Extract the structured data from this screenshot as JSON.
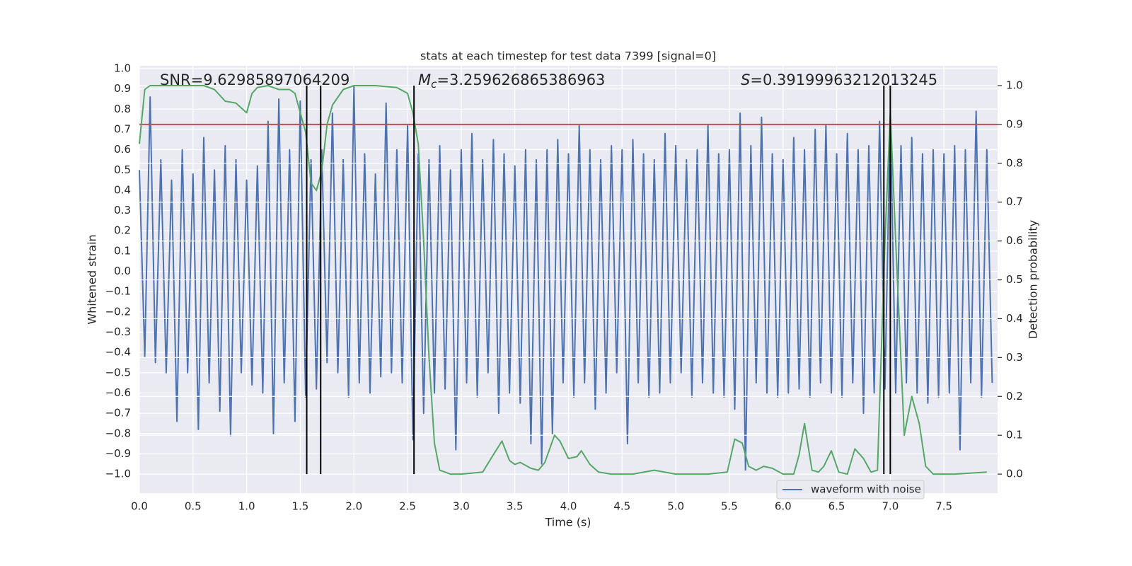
{
  "chart_data": {
    "type": "line",
    "title": "stats at each timestep for test data 7399 [signal=0]",
    "xlabel": "Time (s)",
    "ylabel": "Whitened strain",
    "y2label": "Detection probability",
    "xlim": [
      0,
      8.0
    ],
    "ylim": [
      -1.094,
      1.014
    ],
    "y2lim": [
      -0.049,
      1.051
    ],
    "grid": true,
    "legend": "lower right",
    "xticks": [
      {
        "value": 0,
        "label": "0.0"
      },
      {
        "value": 0.5,
        "label": "0.5"
      },
      {
        "value": 1,
        "label": "1.0"
      },
      {
        "value": 1.5,
        "label": "1.5"
      },
      {
        "value": 2,
        "label": "2.0"
      },
      {
        "value": 2.5,
        "label": "2.5"
      },
      {
        "value": 3,
        "label": "3.0"
      },
      {
        "value": 3.5,
        "label": "3.5"
      },
      {
        "value": 4,
        "label": "4.0"
      },
      {
        "value": 4.5,
        "label": "4.5"
      },
      {
        "value": 5,
        "label": "5.0"
      },
      {
        "value": 5.5,
        "label": "5.5"
      },
      {
        "value": 6,
        "label": "6.0"
      },
      {
        "value": 6.5,
        "label": "6.5"
      },
      {
        "value": 7,
        "label": "7.0"
      },
      {
        "value": 7.5,
        "label": "7.5"
      }
    ],
    "yticks": [
      {
        "value": 1,
        "label": "1.0"
      },
      {
        "value": 0.9,
        "label": "0.9"
      },
      {
        "value": 0.8,
        "label": "0.8"
      },
      {
        "value": 0.7,
        "label": "0.7"
      },
      {
        "value": 0.6,
        "label": "0.6"
      },
      {
        "value": 0.5,
        "label": "0.5"
      },
      {
        "value": 0.4,
        "label": "0.4"
      },
      {
        "value": 0.3,
        "label": "0.3"
      },
      {
        "value": 0.2,
        "label": "0.2"
      },
      {
        "value": 0.1,
        "label": "0.1"
      },
      {
        "value": 0,
        "label": "0.0"
      },
      {
        "value": -0.1,
        "label": "−0.1"
      },
      {
        "value": -0.2,
        "label": "−0.2"
      },
      {
        "value": -0.3,
        "label": "−0.3"
      },
      {
        "value": -0.4,
        "label": "−0.4"
      },
      {
        "value": -0.5,
        "label": "−0.5"
      },
      {
        "value": -0.6,
        "label": "−0.6"
      },
      {
        "value": -0.7,
        "label": "−0.7"
      },
      {
        "value": -0.8,
        "label": "−0.8"
      },
      {
        "value": -0.9,
        "label": "−0.9"
      },
      {
        "value": -1,
        "label": "−1.0"
      }
    ],
    "y2ticks": [
      {
        "value": 0,
        "label": "0.0"
      },
      {
        "value": 0.1,
        "label": "0.1"
      },
      {
        "value": 0.2,
        "label": "0.2"
      },
      {
        "value": 0.3,
        "label": "0.3"
      },
      {
        "value": 0.4,
        "label": "0.4"
      },
      {
        "value": 0.5,
        "label": "0.5"
      },
      {
        "value": 0.6,
        "label": "0.6"
      },
      {
        "value": 0.7,
        "label": "0.7"
      },
      {
        "value": 0.8,
        "label": "0.8"
      },
      {
        "value": 0.9,
        "label": "0.9"
      },
      {
        "value": 1,
        "label": "1.0"
      }
    ],
    "series": [
      {
        "name": "waveform with noise",
        "color": "#4c72b0",
        "x": [
          0,
          0.05,
          0.1,
          0.15,
          0.2,
          0.25,
          0.3,
          0.35,
          0.4,
          0.45,
          0.5,
          0.55,
          0.6,
          0.65,
          0.7,
          0.75,
          0.8,
          0.85,
          0.9,
          0.95,
          1,
          1.05,
          1.1,
          1.15,
          1.2,
          1.25,
          1.3,
          1.35,
          1.4,
          1.45,
          1.5,
          1.55,
          1.6,
          1.65,
          1.7,
          1.75,
          1.8,
          1.85,
          1.9,
          1.95,
          2,
          2.05,
          2.1,
          2.15,
          2.2,
          2.25,
          2.3,
          2.35,
          2.4,
          2.45,
          2.5,
          2.55,
          2.6,
          2.65,
          2.7,
          2.75,
          2.8,
          2.85,
          2.9,
          2.95,
          3,
          3.05,
          3.1,
          3.15,
          3.2,
          3.25,
          3.3,
          3.35,
          3.4,
          3.45,
          3.5,
          3.55,
          3.6,
          3.65,
          3.7,
          3.75,
          3.8,
          3.85,
          3.9,
          3.95,
          4,
          4.05,
          4.1,
          4.15,
          4.2,
          4.25,
          4.3,
          4.35,
          4.4,
          4.45,
          4.5,
          4.55,
          4.6,
          4.65,
          4.7,
          4.75,
          4.8,
          4.85,
          4.9,
          4.95,
          5,
          5.05,
          5.1,
          5.15,
          5.2,
          5.25,
          5.3,
          5.35,
          5.4,
          5.45,
          5.5,
          5.55,
          5.6,
          5.65,
          5.7,
          5.75,
          5.8,
          5.85,
          5.9,
          5.95,
          6,
          6.05,
          6.1,
          6.15,
          6.2,
          6.25,
          6.3,
          6.35,
          6.4,
          6.45,
          6.5,
          6.55,
          6.6,
          6.65,
          6.7,
          6.75,
          6.8,
          6.85,
          6.9,
          6.95,
          7,
          7.05,
          7.1,
          7.15,
          7.2,
          7.25,
          7.3,
          7.35,
          7.4,
          7.45,
          7.5,
          7.55,
          7.6,
          7.65,
          7.7,
          7.75,
          7.8,
          7.85,
          7.9,
          7.95
        ],
        "values": [
          0.5,
          -0.42,
          0.86,
          -0.45,
          0.55,
          -0.5,
          0.45,
          -0.74,
          0.6,
          -0.5,
          0.48,
          -0.78,
          0.66,
          -0.55,
          0.5,
          -0.69,
          0.62,
          -0.81,
          0.55,
          -0.5,
          0.45,
          -0.56,
          0.52,
          -0.6,
          0.74,
          -0.8,
          0.85,
          -0.55,
          0.6,
          -0.74,
          0.84,
          -0.62,
          0.55,
          -0.58,
          0.6,
          -0.45,
          0.78,
          -0.5,
          0.55,
          -0.62,
          0.91,
          -0.55,
          0.58,
          -0.6,
          0.48,
          -0.52,
          0.83,
          -0.5,
          0.6,
          -0.55,
          0.72,
          -0.83,
          0.58,
          -0.7,
          0.55,
          -0.6,
          0.62,
          -0.58,
          0.5,
          -0.88,
          0.6,
          -0.55,
          0.68,
          -0.62,
          0.55,
          -0.5,
          0.65,
          -0.7,
          0.58,
          -0.6,
          0.52,
          -0.65,
          0.6,
          -0.85,
          0.55,
          -0.95,
          0.6,
          -0.8,
          0.65,
          -0.55,
          0.58,
          -0.62,
          0.72,
          -0.55,
          0.6,
          -0.68,
          0.55,
          -0.6,
          0.62,
          -0.5,
          0.6,
          -0.85,
          0.65,
          -0.55,
          0.58,
          -0.62,
          0.55,
          -0.6,
          0.68,
          -0.55,
          0.62,
          -0.5,
          0.55,
          -0.62,
          0.6,
          -0.55,
          0.72,
          -0.6,
          0.58,
          -0.62,
          0.6,
          -0.68,
          0.78,
          -0.98,
          0.62,
          -0.55,
          0.76,
          -0.6,
          0.58,
          -0.62,
          0.55,
          -0.6,
          0.66,
          -0.58,
          0.6,
          -0.62,
          0.7,
          -0.55,
          0.72,
          -0.6,
          0.58,
          -0.62,
          0.68,
          -0.55,
          0.6,
          -0.7,
          0.62,
          -0.6,
          0.74,
          -0.58,
          0.77,
          -0.6,
          0.62,
          -0.55,
          0.66,
          -0.6,
          0.58,
          -0.65,
          0.6,
          -0.62,
          0.58,
          -0.6,
          0.62,
          -0.88,
          0.6,
          -0.55,
          0.79,
          -0.62,
          0.6,
          -0.55
        ]
      },
      {
        "axis": "y2",
        "color": "#55a868",
        "x": [
          0,
          0.05,
          0.1,
          0.3,
          0.6,
          0.7,
          0.8,
          0.9,
          1.0,
          1.05,
          1.1,
          1.2,
          1.3,
          1.4,
          1.45,
          1.55,
          1.6,
          1.65,
          1.7,
          1.75,
          1.8,
          1.9,
          2.0,
          2.2,
          2.4,
          2.5,
          2.55,
          2.6,
          2.65,
          2.7,
          2.75,
          2.8,
          2.9,
          3.0,
          3.2,
          3.3,
          3.38,
          3.45,
          3.5,
          3.55,
          3.65,
          3.72,
          3.78,
          3.87,
          3.92,
          4.0,
          4.08,
          4.12,
          4.2,
          4.28,
          4.4,
          4.6,
          4.8,
          5.0,
          5.3,
          5.48,
          5.55,
          5.62,
          5.68,
          5.75,
          5.82,
          5.9,
          6.0,
          6.1,
          6.15,
          6.2,
          6.27,
          6.33,
          6.38,
          6.45,
          6.52,
          6.6,
          6.67,
          6.75,
          6.82,
          6.88,
          6.95,
          7.0,
          7.05,
          7.13,
          7.2,
          7.27,
          7.33,
          7.4,
          7.6,
          7.9
        ],
        "values": [
          0.85,
          0.99,
          1.0,
          1.0,
          1.0,
          0.99,
          0.96,
          0.955,
          0.93,
          0.98,
          0.995,
          1.0,
          0.99,
          0.99,
          0.98,
          0.88,
          0.75,
          0.73,
          0.78,
          0.9,
          0.95,
          0.99,
          1.0,
          1.0,
          0.995,
          0.98,
          0.93,
          0.85,
          0.6,
          0.3,
          0.08,
          0.01,
          0.0,
          0.0,
          0.005,
          0.05,
          0.085,
          0.035,
          0.025,
          0.03,
          0.015,
          0.01,
          0.03,
          0.1,
          0.085,
          0.04,
          0.045,
          0.06,
          0.025,
          0.005,
          0.0,
          0.0,
          0.01,
          0.0,
          0.0,
          0.005,
          0.09,
          0.08,
          0.02,
          0.01,
          0.02,
          0.015,
          0.0,
          0.0,
          0.05,
          0.13,
          0.01,
          0.005,
          0.02,
          0.06,
          0.005,
          0.0,
          0.065,
          0.04,
          0.005,
          0.01,
          0.6,
          0.93,
          0.6,
          0.1,
          0.2,
          0.13,
          0.02,
          0.0,
          0.0,
          0.005
        ]
      }
    ],
    "hline": {
      "axis": "y2",
      "value": 0.9,
      "color": "#c44e52"
    },
    "vlines": {
      "axis": "y2",
      "x": [
        1.56,
        1.69,
        2.56,
        6.94,
        7.0
      ],
      "ymin": 0,
      "ymax": 1,
      "color": "#000000"
    },
    "annotations": [
      {
        "text": "SNR=9.62985897064209"
      },
      {
        "symbol": "M",
        "subscript": "c",
        "text": "=3.259626865386963"
      },
      {
        "symbol": "S",
        "text": "=0.39199963212013245"
      }
    ]
  }
}
